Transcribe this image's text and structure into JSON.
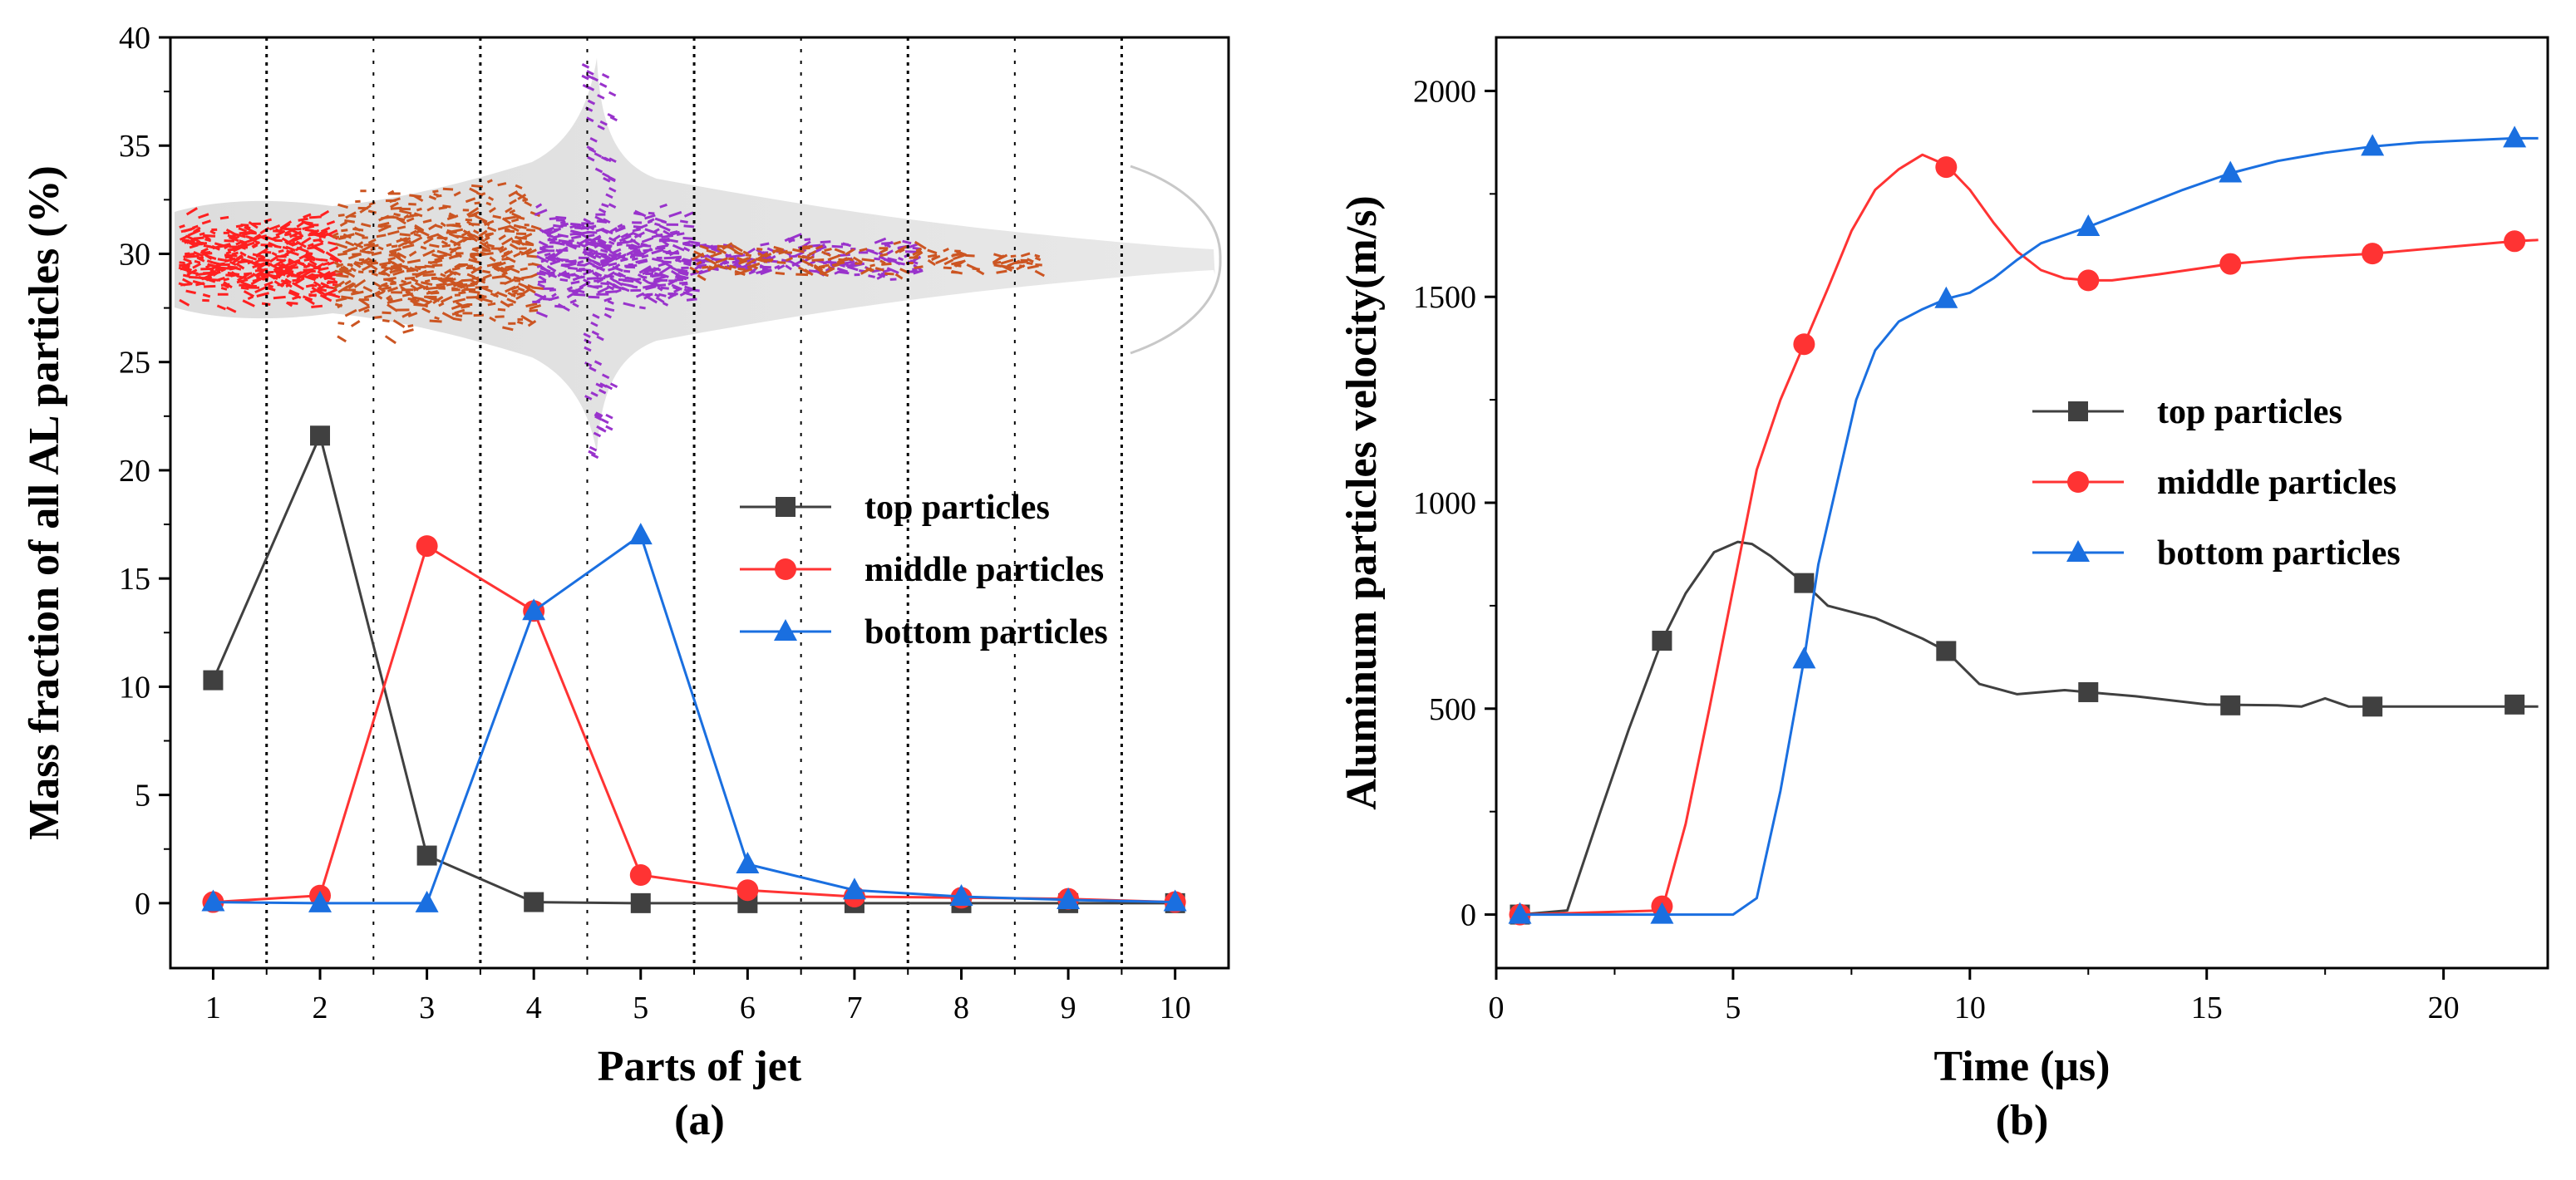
{
  "chart_data": [
    {
      "type": "line",
      "panel_label": "(a)",
      "xlabel": "Parts of jet",
      "ylabel": "Mass fraction of all AL particles (%)",
      "xlim": [
        0.6,
        10.5
      ],
      "ylim": [
        -3,
        40
      ],
      "xticks": [
        1,
        2,
        3,
        4,
        5,
        6,
        7,
        8,
        9,
        10
      ],
      "yticks": [
        0,
        5,
        10,
        15,
        20,
        25,
        30,
        35,
        40
      ],
      "divider_lines_x": [
        1.5,
        2.5,
        3.5,
        4.5,
        5.5,
        6.5,
        7.5,
        8.5,
        9.5
      ],
      "inset_image": "jet-particle-distribution",
      "legend_position": "center-right",
      "series": [
        {
          "name": "top particles",
          "color": "#404040",
          "marker": "square",
          "x": [
            1,
            2,
            3,
            4,
            5,
            6,
            7,
            8,
            9,
            10
          ],
          "y": [
            10.3,
            21.6,
            2.2,
            0.05,
            0,
            0,
            0,
            0,
            0,
            0
          ]
        },
        {
          "name": "middle particles",
          "color": "#ff3333",
          "marker": "circle",
          "x": [
            1,
            2,
            3,
            4,
            5,
            6,
            7,
            8,
            9,
            10
          ],
          "y": [
            0.05,
            0.35,
            16.5,
            13.5,
            1.3,
            0.6,
            0.3,
            0.25,
            0.2,
            0.05
          ]
        },
        {
          "name": "bottom particles",
          "color": "#1a6fe0",
          "marker": "triangle",
          "x": [
            1,
            2,
            3,
            4,
            5,
            6,
            7,
            8,
            9,
            10
          ],
          "y": [
            0.05,
            0,
            0,
            13.5,
            17.0,
            1.8,
            0.6,
            0.3,
            0.15,
            0.05
          ]
        }
      ]
    },
    {
      "type": "line",
      "panel_label": "(b)",
      "xlabel": "Time (μs)",
      "ylabel": "Aluminum particles velocity(m/s)",
      "xlim": [
        0,
        22.2
      ],
      "ylim": [
        -130,
        2130
      ],
      "xticks": [
        0,
        5,
        10,
        15,
        20
      ],
      "yticks": [
        0,
        500,
        1000,
        1500,
        2000
      ],
      "legend_position": "center-right",
      "series": [
        {
          "name": "top particles",
          "color": "#404040",
          "marker": "square",
          "curve_x": [
            0.5,
            1.5,
            2.2,
            2.8,
            3.5,
            4,
            4.6,
            5.1,
            5.4,
            5.8,
            6.5,
            7,
            8,
            9,
            9.5,
            10.2,
            11,
            12,
            12.5,
            13.5,
            15,
            16.5,
            17,
            17.5,
            18,
            18.5,
            20,
            22
          ],
          "curve_y": [
            0,
            10,
            250,
            450,
            665,
            780,
            880,
            905,
            900,
            870,
            805,
            750,
            720,
            670,
            640,
            560,
            535,
            545,
            540,
            530,
            510,
            508,
            505,
            525,
            505,
            505,
            505,
            505
          ],
          "marker_x": [
            0.5,
            3.5,
            6.5,
            9.5,
            12.5,
            15.5,
            18.5,
            21.5
          ],
          "marker_y": [
            0,
            665,
            805,
            640,
            540,
            508,
            505,
            510
          ]
        },
        {
          "name": "middle particles",
          "color": "#ff3333",
          "marker": "circle",
          "curve_x": [
            0.5,
            3.5,
            4,
            4.5,
            5,
            5.5,
            6,
            6.5,
            7,
            7.5,
            8,
            8.5,
            9,
            9.5,
            10,
            10.5,
            11,
            11.5,
            12,
            12.5,
            13,
            14,
            15.5,
            17,
            18.5,
            20,
            21.5,
            22
          ],
          "curve_y": [
            0,
            10,
            220,
            500,
            790,
            1080,
            1250,
            1385,
            1520,
            1660,
            1760,
            1810,
            1845,
            1820,
            1760,
            1680,
            1610,
            1565,
            1545,
            1540,
            1540,
            1555,
            1580,
            1595,
            1605,
            1620,
            1635,
            1638
          ],
          "marker_x": [
            0.5,
            3.5,
            6.5,
            9.5,
            12.5,
            15.5,
            18.5,
            21.5
          ],
          "marker_y": [
            0,
            20,
            1385,
            1815,
            1540,
            1580,
            1605,
            1635
          ]
        },
        {
          "name": "bottom particles",
          "color": "#1a6fe0",
          "marker": "triangle",
          "curve_x": [
            0.5,
            3.5,
            5,
            5.5,
            6,
            6.5,
            6.8,
            7.2,
            7.6,
            8,
            8.5,
            9,
            9.5,
            10,
            10.5,
            11,
            11.5,
            12.5,
            13.5,
            14.5,
            15.5,
            16.5,
            17.5,
            18.5,
            19.5,
            20.5,
            21.5,
            22
          ],
          "curve_y": [
            0,
            0,
            0,
            40,
            300,
            620,
            850,
            1050,
            1250,
            1370,
            1440,
            1470,
            1495,
            1510,
            1545,
            1590,
            1630,
            1670,
            1715,
            1760,
            1800,
            1830,
            1850,
            1865,
            1875,
            1880,
            1885,
            1885
          ],
          "marker_x": [
            0.5,
            3.5,
            6.5,
            9.5,
            12.5,
            15.5,
            18.5,
            21.5
          ],
          "marker_y": [
            0,
            0,
            620,
            1495,
            1670,
            1800,
            1865,
            1885
          ]
        }
      ]
    }
  ]
}
